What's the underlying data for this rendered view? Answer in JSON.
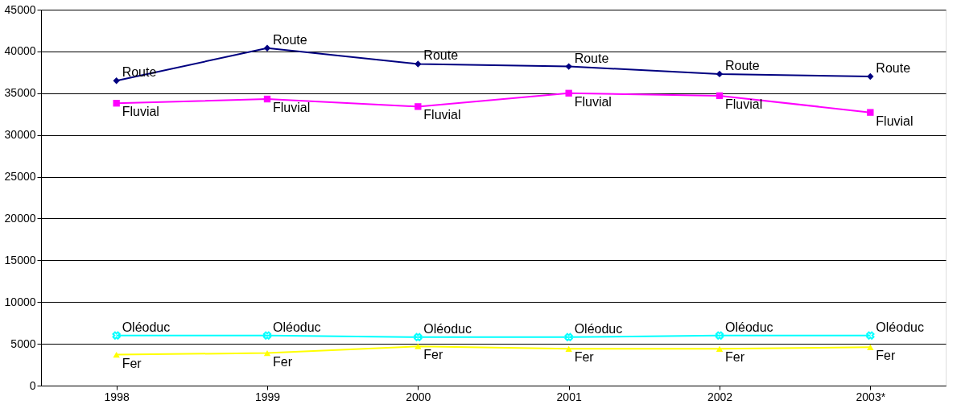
{
  "chart_data": {
    "type": "line",
    "categories": [
      "1998",
      "1999",
      "2000",
      "2001",
      "2002",
      "2003*"
    ],
    "series": [
      {
        "name": "Route",
        "color": "#000080",
        "marker": "diamond",
        "values": [
          36500,
          40400,
          38500,
          38200,
          37300,
          37000
        ]
      },
      {
        "name": "Fluvial",
        "color": "#ff00ff",
        "marker": "square",
        "values": [
          33800,
          34300,
          33400,
          35000,
          34700,
          32700
        ]
      },
      {
        "name": "Oléoduc",
        "color": "#00ffff",
        "marker": "cross",
        "values": [
          6000,
          6000,
          5800,
          5800,
          6000,
          6000
        ]
      },
      {
        "name": "Fer",
        "color": "#ffff00",
        "marker": "triangle",
        "values": [
          3700,
          3900,
          4700,
          4400,
          4400,
          4600
        ]
      }
    ],
    "ylim": [
      0,
      45000
    ],
    "yticks": [
      0,
      5000,
      10000,
      15000,
      20000,
      25000,
      30000,
      35000,
      40000,
      45000
    ],
    "grid": "y",
    "legend": false
  }
}
